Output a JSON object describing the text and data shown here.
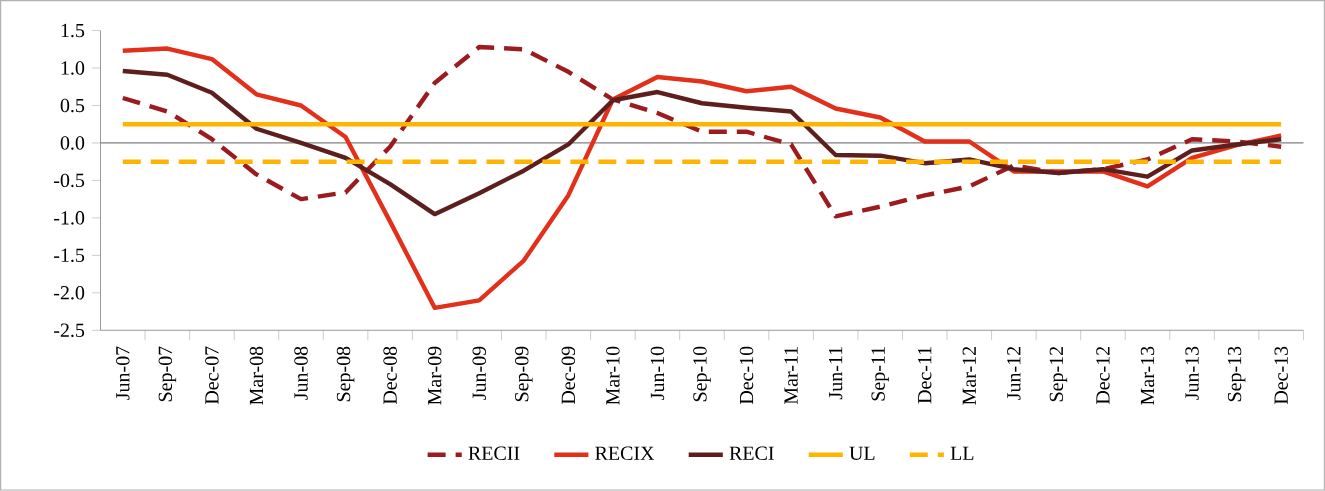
{
  "chart_data": {
    "type": "line",
    "categories": [
      "Jun-07",
      "Sep-07",
      "Dec-07",
      "Mar-08",
      "Jun-08",
      "Sep-08",
      "Dec-08",
      "Mar-09",
      "Jun-09",
      "Sep-09",
      "Dec-09",
      "Mar-10",
      "Jun-10",
      "Sep-10",
      "Dec-10",
      "Mar-11",
      "Jun-11",
      "Sep-11",
      "Dec-11",
      "Mar-12",
      "Jun-12",
      "Sep-12",
      "Dec-12",
      "Mar-13",
      "Jun-13",
      "Sep-13",
      "Dec-13"
    ],
    "series": [
      {
        "name": "RECII",
        "color": "#9b1b1f",
        "line_style": "dashed",
        "values": [
          0.6,
          0.42,
          0.05,
          -0.42,
          -0.75,
          -0.66,
          -0.05,
          0.8,
          1.28,
          1.25,
          0.95,
          0.58,
          0.4,
          0.15,
          0.15,
          -0.02,
          -0.98,
          -0.85,
          -0.7,
          -0.58,
          -0.3,
          -0.4,
          -0.35,
          -0.22,
          0.05,
          0.02,
          -0.05
        ]
      },
      {
        "name": "RECIX",
        "color": "#e2301b",
        "line_style": "solid",
        "values": [
          1.23,
          1.26,
          1.12,
          0.65,
          0.5,
          0.08,
          -1.05,
          -2.2,
          -2.1,
          -1.57,
          -0.7,
          0.58,
          0.88,
          0.82,
          0.69,
          0.75,
          0.46,
          0.34,
          0.02,
          0.02,
          -0.38,
          -0.38,
          -0.38,
          -0.58,
          -0.2,
          -0.03,
          0.1
        ]
      },
      {
        "name": "RECI",
        "color": "#5c1f1d",
        "line_style": "solid",
        "values": [
          0.96,
          0.91,
          0.67,
          0.19,
          0.0,
          -0.2,
          -0.55,
          -0.95,
          -0.67,
          -0.37,
          -0.02,
          0.57,
          0.68,
          0.53,
          0.47,
          0.42,
          -0.16,
          -0.17,
          -0.27,
          -0.22,
          -0.35,
          -0.4,
          -0.35,
          -0.45,
          -0.1,
          -0.02,
          0.05
        ]
      },
      {
        "name": "UL",
        "color": "#ffb400",
        "line_style": "solid",
        "values": [
          0.25,
          0.25,
          0.25,
          0.25,
          0.25,
          0.25,
          0.25,
          0.25,
          0.25,
          0.25,
          0.25,
          0.25,
          0.25,
          0.25,
          0.25,
          0.25,
          0.25,
          0.25,
          0.25,
          0.25,
          0.25,
          0.25,
          0.25,
          0.25,
          0.25,
          0.25,
          0.25
        ]
      },
      {
        "name": "LL",
        "color": "#ffb400",
        "line_style": "dashed",
        "values": [
          -0.25,
          -0.25,
          -0.25,
          -0.25,
          -0.25,
          -0.25,
          -0.25,
          -0.25,
          -0.25,
          -0.25,
          -0.25,
          -0.25,
          -0.25,
          -0.25,
          -0.25,
          -0.25,
          -0.25,
          -0.25,
          -0.25,
          -0.25,
          -0.25,
          -0.25,
          -0.25,
          -0.25,
          -0.25,
          -0.25,
          -0.25
        ]
      }
    ],
    "ylim": [
      -2.5,
      1.5
    ],
    "yticks": [
      {
        "value": -2.5,
        "label": "-2.5"
      },
      {
        "value": -2.0,
        "label": "-2.0"
      },
      {
        "value": -1.5,
        "label": "-1.5"
      },
      {
        "value": -1.0,
        "label": "-1.0"
      },
      {
        "value": -0.5,
        "label": "-0.5"
      },
      {
        "value": 0.0,
        "label": "0.0"
      },
      {
        "value": 0.5,
        "label": "0.5"
      },
      {
        "value": 1.0,
        "label": "1.0"
      },
      {
        "value": 1.5,
        "label": "1.5"
      }
    ],
    "ref_lines": [
      {
        "axis": "y",
        "value": 0,
        "color": "#808080"
      }
    ],
    "grid": false,
    "legend": "bottom",
    "marker": "none"
  }
}
